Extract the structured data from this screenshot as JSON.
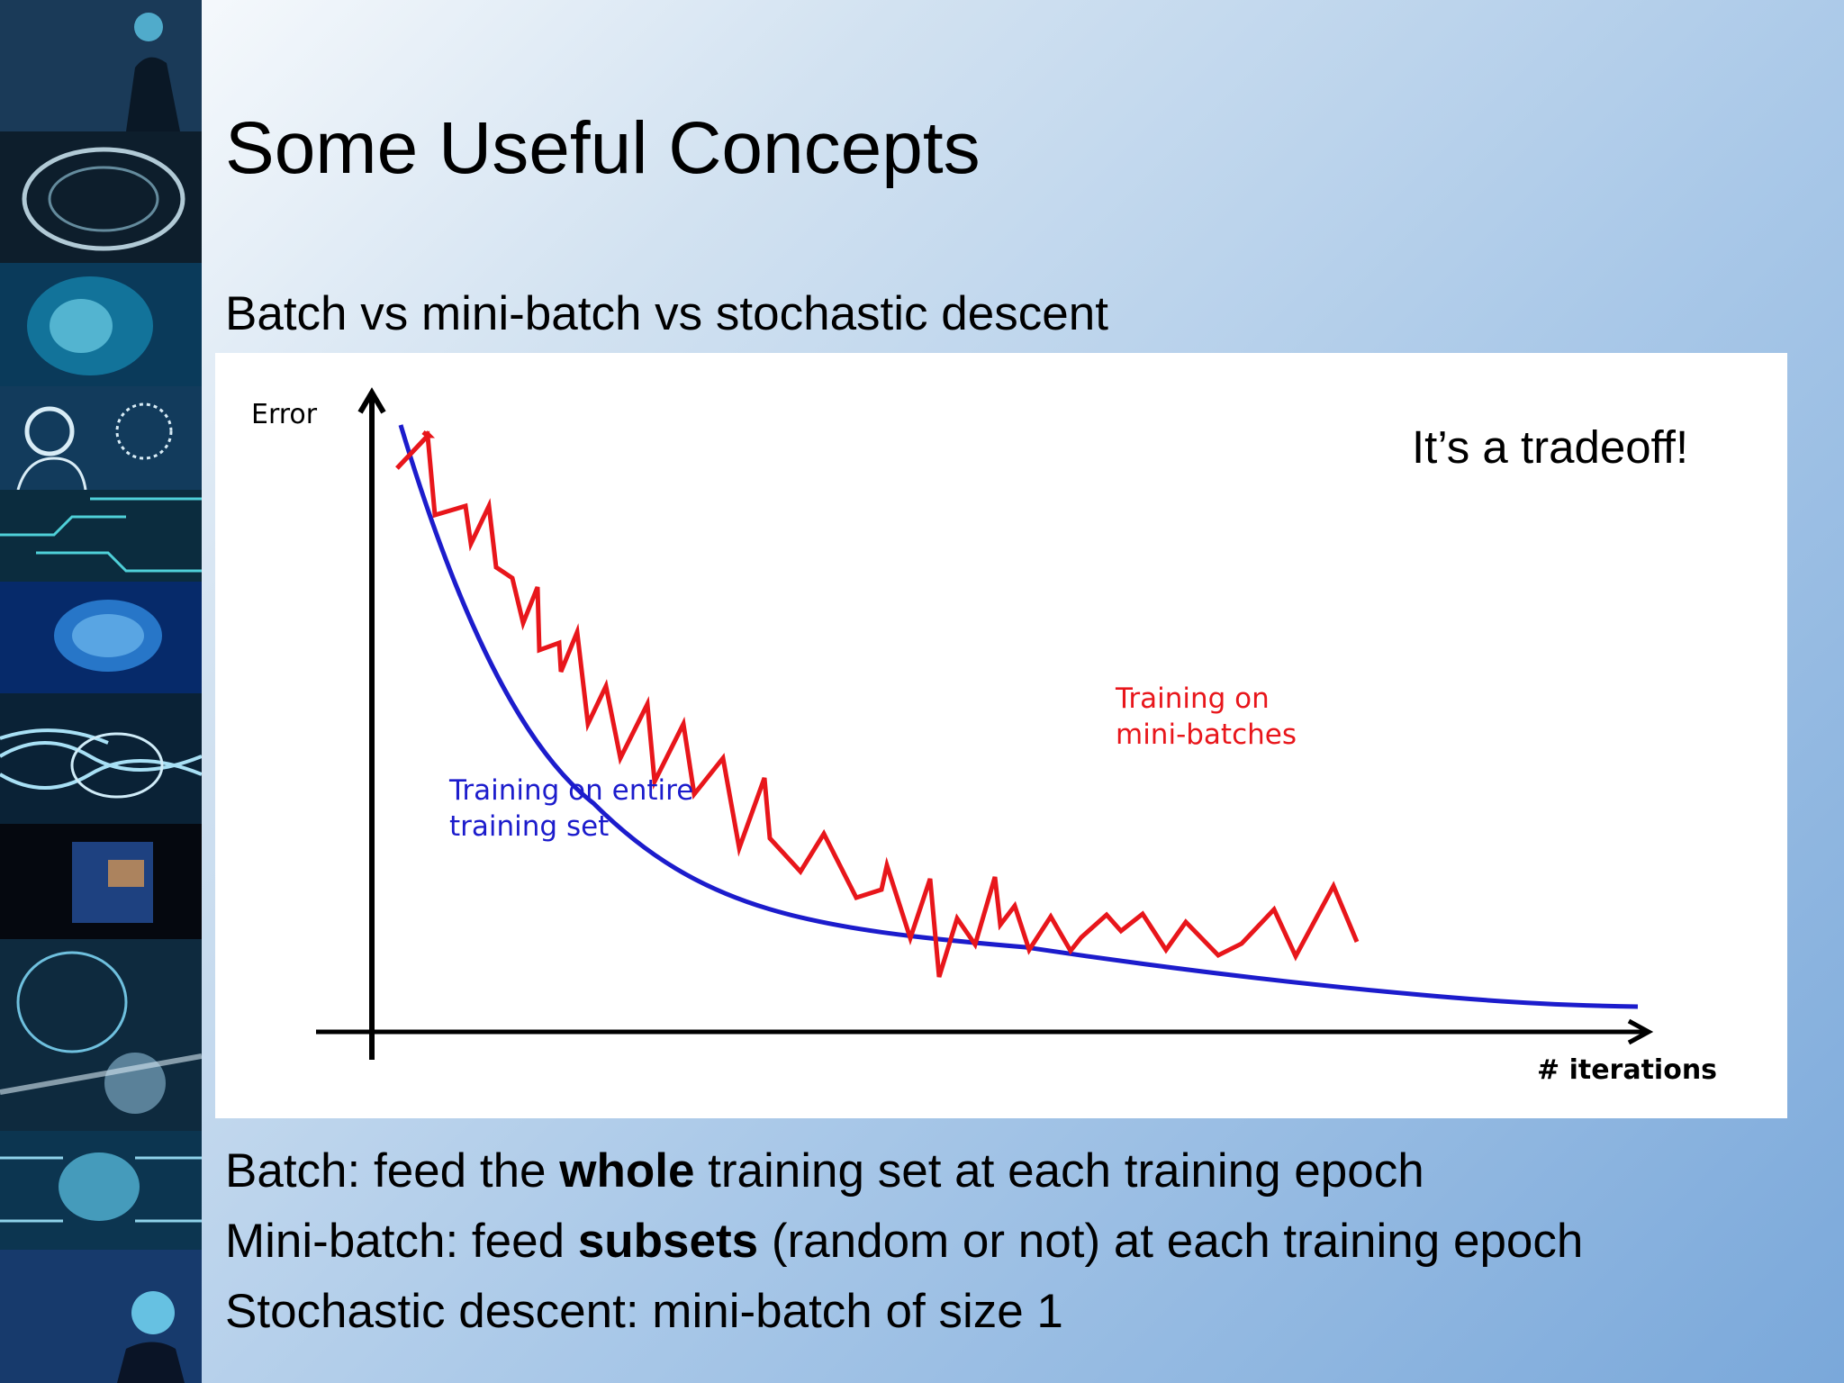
{
  "slide": {
    "title": "Some Useful Concepts",
    "subtitle": "Batch vs mini-batch vs stochastic descent",
    "callout": "It’s a tradeoff!",
    "bullets": [
      {
        "prefix": "Batch: feed the ",
        "bold": "whole",
        "suffix": " training set at each training epoch"
      },
      {
        "prefix": "Mini-batch: feed ",
        "bold": "subsets",
        "suffix": " (random or not) at each training epoch"
      },
      {
        "prefix": "Stochastic descent: mini-batch of size 1",
        "bold": "",
        "suffix": ""
      }
    ]
  },
  "sidebar": {
    "images": [
      "head-silhouette-image",
      "glowing-brain-image",
      "digital-head-image",
      "gears-and-brain-heads-image",
      "circuit-face-image",
      "blue-brain-image",
      "wired-brain-image",
      "data-face-image",
      "binary-head-image",
      "circuit-brain-image",
      "brain-hand-image"
    ]
  },
  "chart_data": {
    "type": "line",
    "ylabel": "Error",
    "xlabel": "# iterations",
    "series": [
      {
        "name": "Training on entire training set",
        "color": "#1c1ccc",
        "style": "smooth decreasing curve"
      },
      {
        "name": "Training on mini-batches",
        "color": "#e8161b",
        "style": "noisy zigzag decreasing curve"
      }
    ]
  }
}
